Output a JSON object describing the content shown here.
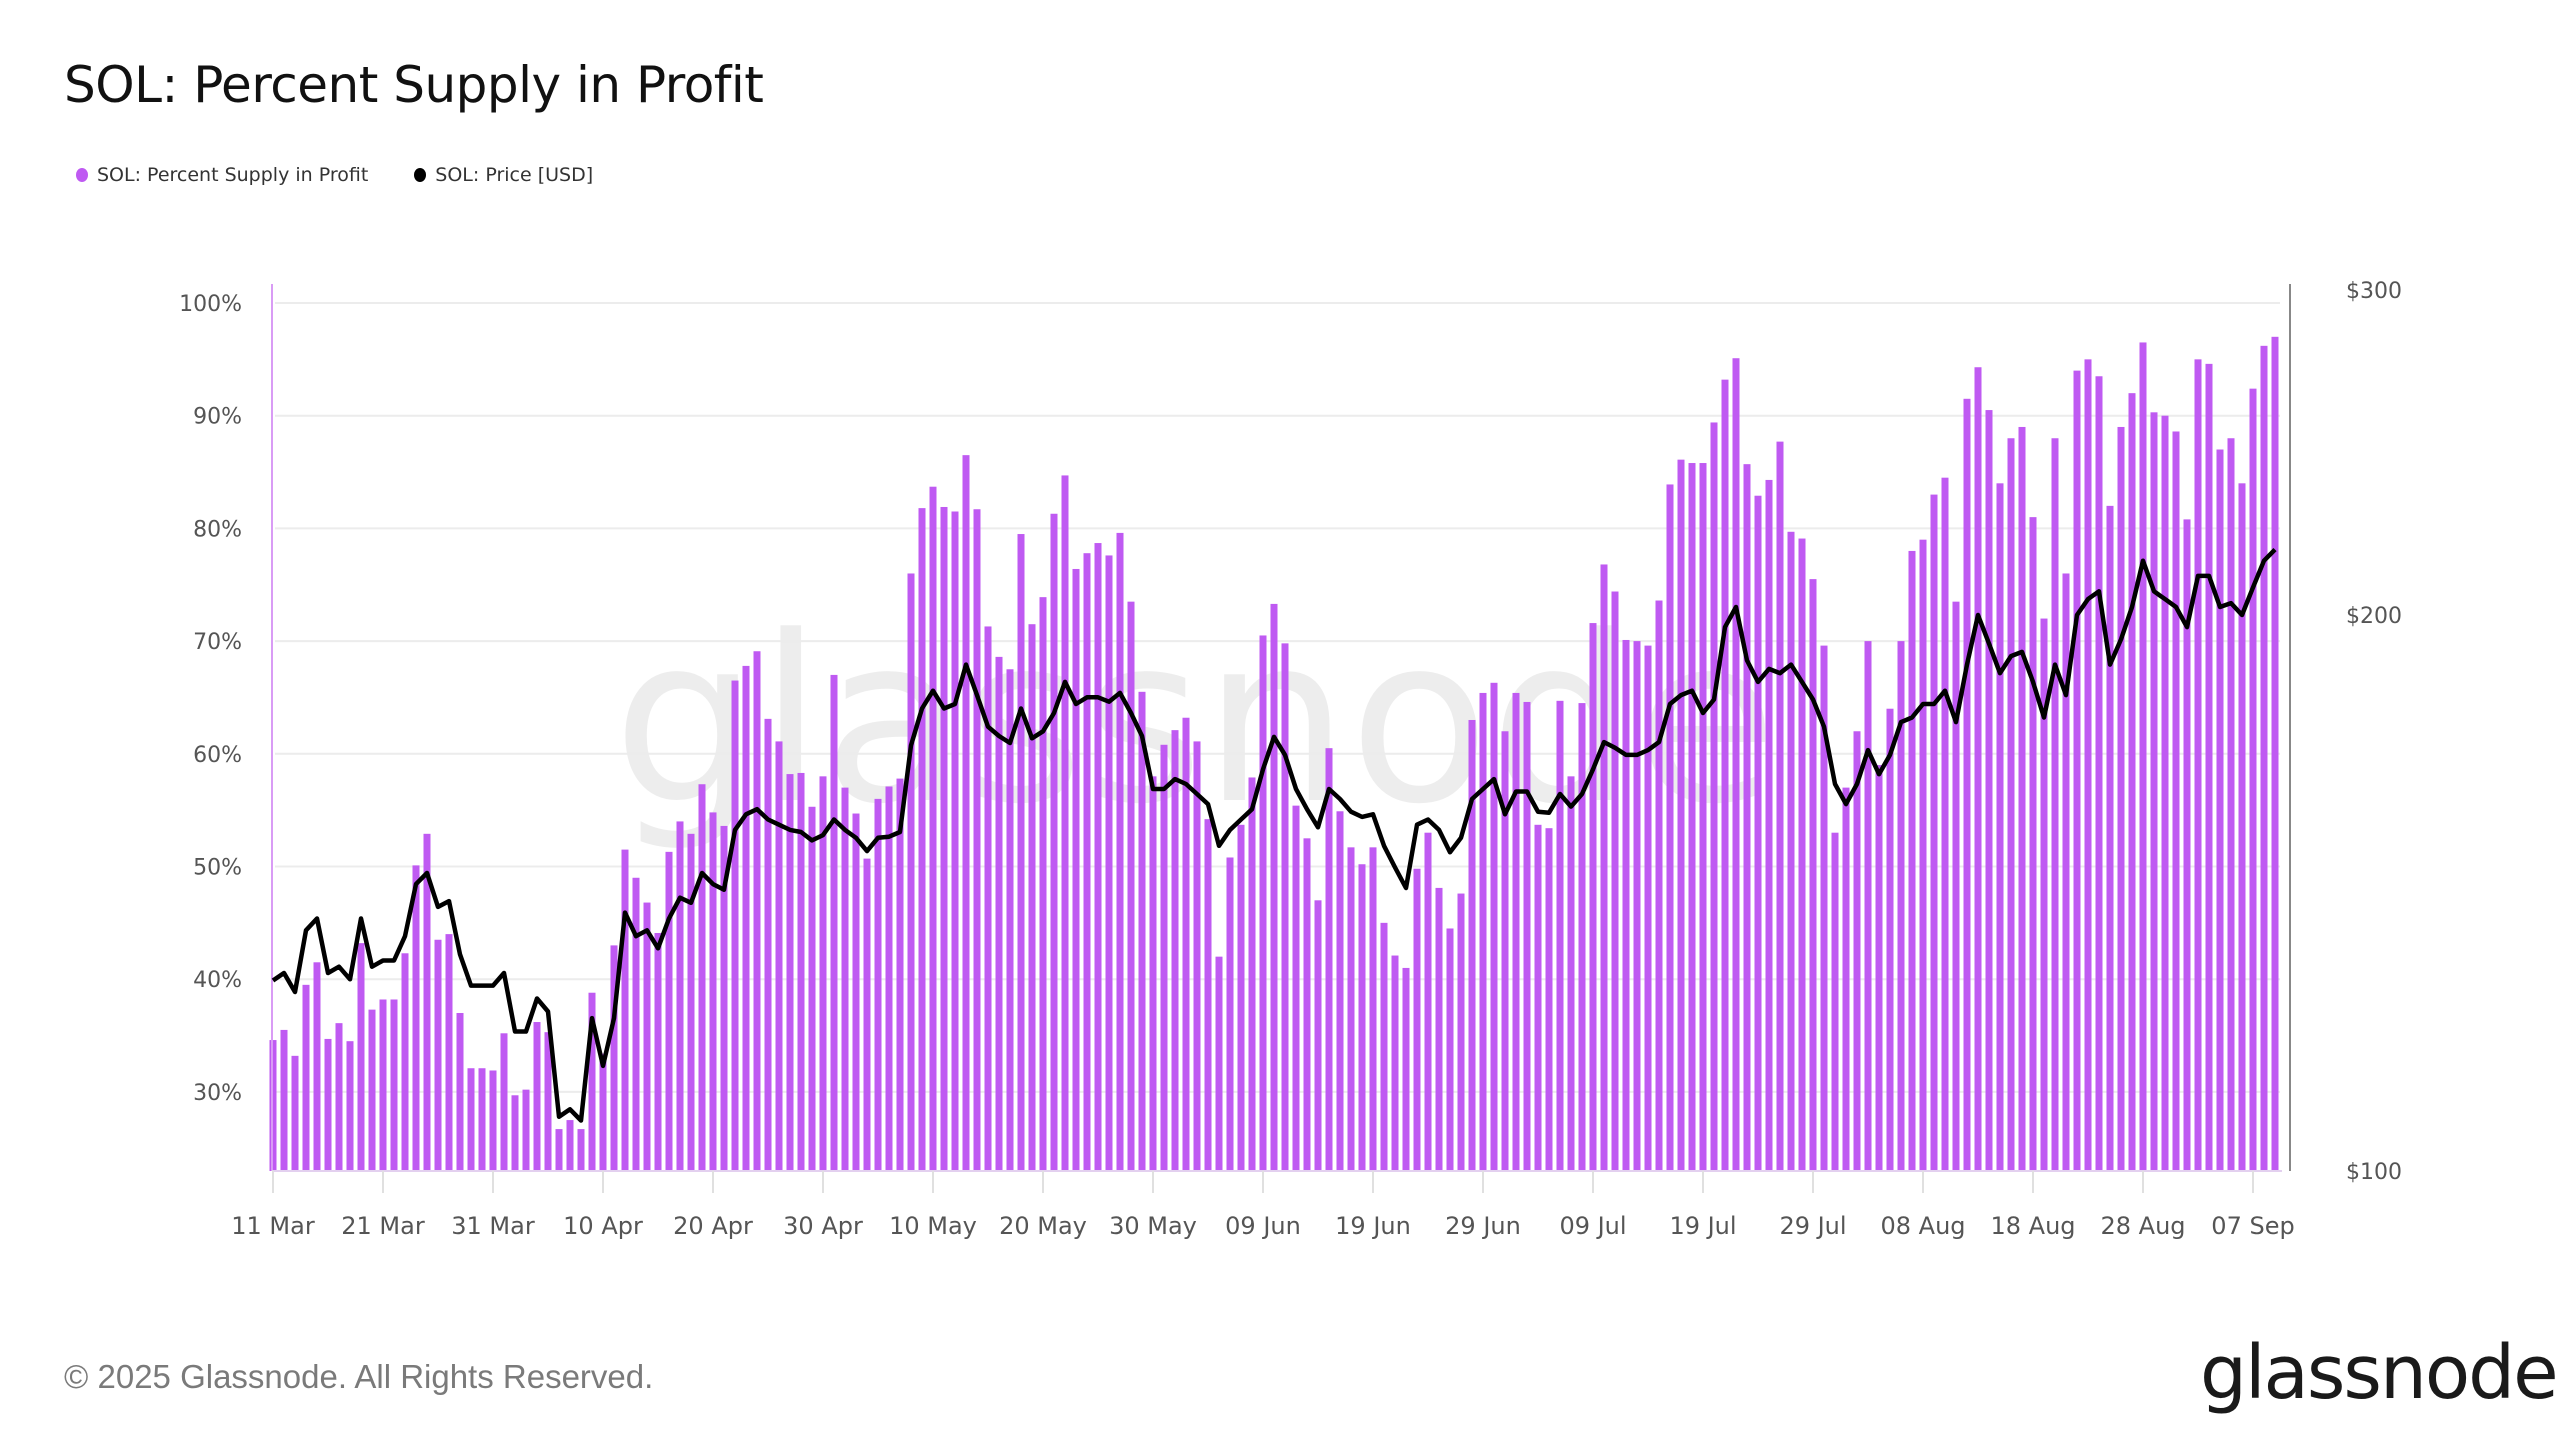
{
  "header": {
    "title": "SOL: Percent Supply in Profit"
  },
  "legend": [
    {
      "label": "SOL: Percent Supply in Profit",
      "color": "#bf5af2"
    },
    {
      "label": "SOL: Price [USD]",
      "color": "#000000"
    }
  ],
  "footer": {
    "copyright": "© 2025 Glassnode. All Rights Reserved.",
    "logo": "glassnode"
  },
  "watermark": "glassnode",
  "chart_data": {
    "type": "bar",
    "title": "SOL: Percent Supply in Profit",
    "xlabel": "",
    "ylabel": "",
    "start_date": "2025-03-11",
    "end_date": "2025-09-09",
    "x_tick_labels": [
      "11 Mar",
      "21 Mar",
      "31 Mar",
      "10 Apr",
      "20 Apr",
      "30 Apr",
      "10 May",
      "20 May",
      "30 May",
      "09 Jun",
      "19 Jun",
      "29 Jun",
      "09 Jul",
      "19 Jul",
      "29 Jul",
      "08 Aug",
      "18 Aug",
      "28 Aug",
      "07 Sep"
    ],
    "x_tick_day_offsets": [
      0,
      10,
      20,
      30,
      40,
      50,
      60,
      70,
      80,
      90,
      100,
      110,
      120,
      130,
      140,
      150,
      160,
      170,
      180
    ],
    "y_left": {
      "ticks": [
        30,
        40,
        50,
        60,
        70,
        80,
        90,
        100
      ],
      "tick_labels": [
        "30%",
        "40%",
        "50%",
        "60%",
        "70%",
        "80%",
        "90%",
        "100%"
      ],
      "range": [
        23,
        100
      ]
    },
    "y_right": {
      "scale": "log",
      "ticks": [
        100,
        200,
        300
      ],
      "tick_labels": [
        "$100",
        "$200",
        "$300"
      ],
      "range": [
        100,
        300
      ]
    },
    "grid": true,
    "legend_position": "top-left",
    "series": [
      {
        "name": "SOL: Percent Supply in Profit",
        "type": "bar",
        "axis": "left",
        "color": "#bf5af2",
        "values": [
          34.6,
          35.5,
          33.2,
          39.5,
          41.5,
          34.7,
          36.1,
          34.5,
          43.2,
          37.3,
          38.2,
          38.2,
          42.3,
          50.1,
          52.9,
          43.5,
          44.0,
          37.0,
          32.1,
          32.1,
          31.9,
          35.2,
          29.7,
          30.2,
          36.2,
          35.3,
          26.7,
          27.5,
          26.7,
          38.8,
          33.4,
          43.0,
          51.5,
          49.0,
          46.8,
          44.1,
          51.3,
          54.0,
          52.9,
          57.3,
          54.8,
          53.6,
          66.5,
          67.8,
          69.1,
          63.1,
          61.1,
          58.2,
          58.3,
          55.3,
          58.0,
          67.0,
          57.0,
          54.7,
          50.7,
          56.0,
          57.1,
          57.8,
          76.0,
          81.8,
          83.7,
          81.9,
          81.5,
          86.5,
          81.7,
          71.3,
          68.6,
          67.5,
          79.5,
          71.5,
          73.9,
          81.3,
          84.7,
          76.4,
          77.8,
          78.7,
          77.6,
          79.6,
          73.5,
          65.5,
          58.0,
          60.8,
          62.1,
          63.2,
          61.1,
          54.2,
          42.0,
          50.8,
          53.7,
          57.9,
          70.5,
          73.3,
          69.8,
          55.4,
          52.5,
          47.0,
          60.5,
          54.9,
          51.7,
          50.2,
          51.7,
          45.0,
          42.1,
          41.0,
          49.8,
          53.0,
          48.1,
          44.5,
          47.6,
          63.0,
          65.4,
          66.3,
          62.0,
          65.4,
          64.6,
          53.7,
          53.4,
          64.7,
          58.0,
          64.5,
          71.6,
          76.8,
          74.4,
          70.1,
          70.0,
          69.6,
          73.6,
          83.9,
          86.1,
          85.8,
          85.8,
          89.4,
          93.2,
          95.1,
          85.7,
          82.9,
          84.3,
          87.7,
          79.7,
          79.1,
          75.5,
          69.6,
          53.0,
          57.0,
          62.0,
          70.0,
          59.0,
          64.0,
          70.0,
          78.0,
          79.0,
          83.0,
          84.5,
          73.5,
          91.5,
          94.3,
          90.5,
          84.0,
          88.0,
          89.0,
          81.0,
          72.0,
          88.0,
          76.0,
          94.0,
          95.0,
          93.5,
          82.0,
          89.0,
          92.0,
          96.5,
          90.3,
          90.0,
          88.6,
          80.8,
          95.0,
          94.6,
          87.0,
          88.0,
          84.0,
          92.4,
          96.2,
          97.0
        ]
      },
      {
        "name": "SOL: Price [USD]",
        "type": "line",
        "axis": "right",
        "color": "#000000",
        "values": [
          126.8,
          128,
          125,
          135,
          137,
          128,
          129,
          127,
          137,
          129,
          130,
          130,
          134,
          143,
          145,
          139,
          140,
          131,
          126,
          126,
          126,
          128,
          119,
          119,
          124,
          122,
          107,
          108,
          106.5,
          121,
          114,
          121,
          138,
          134,
          135,
          132,
          137,
          140.6,
          139.7,
          145,
          143,
          142,
          153,
          156,
          157,
          155,
          154,
          153,
          152.6,
          151,
          152,
          155,
          153,
          151.5,
          149,
          151.5,
          151.7,
          152.6,
          170,
          178,
          182,
          178,
          179,
          188,
          181,
          174,
          172,
          170.5,
          178,
          171.5,
          173,
          177,
          184,
          179,
          180.5,
          180.5,
          179.5,
          181.5,
          177,
          172,
          161,
          161,
          163,
          162,
          160,
          158,
          150,
          153,
          155,
          157,
          165,
          171.8,
          168,
          161,
          157,
          153.5,
          161,
          159,
          156.5,
          155.5,
          156,
          150,
          146,
          142.3,
          154,
          155,
          153,
          148.8,
          151.5,
          159,
          161,
          163,
          156,
          160.5,
          160.5,
          156.5,
          156.3,
          160,
          157.5,
          160,
          165,
          170.7,
          169.5,
          168,
          168,
          169,
          170.7,
          179,
          181,
          182,
          177,
          180,
          197,
          202,
          189,
          184,
          187,
          186,
          188,
          184,
          180,
          174,
          162,
          158,
          162,
          169,
          164,
          168,
          175,
          176,
          179,
          179,
          182,
          175,
          188,
          200,
          193,
          186,
          190,
          191,
          184,
          176,
          188,
          181,
          200,
          204,
          206,
          188,
          194,
          202,
          214,
          206,
          204,
          202,
          197,
          210,
          210,
          202,
          203,
          200,
          207,
          214,
          217
        ]
      }
    ]
  }
}
